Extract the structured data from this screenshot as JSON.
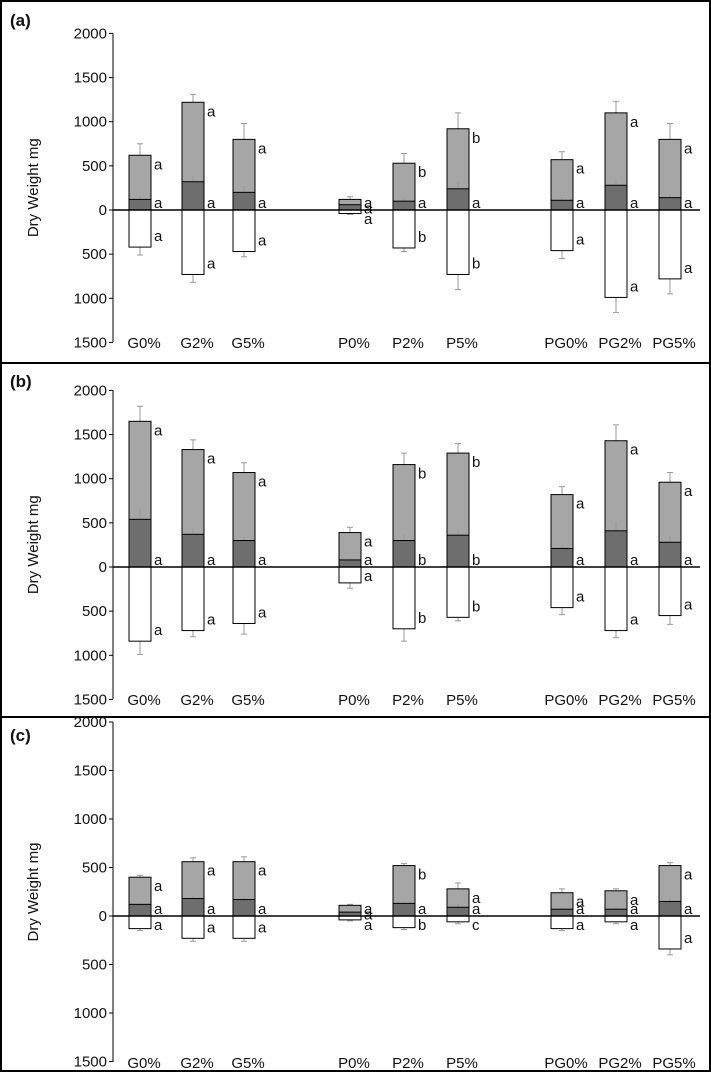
{
  "chart_data": [
    {
      "type": "bar",
      "panel_label": "(a)",
      "ylabel": "Dry Weight mg",
      "y_tick_labels_above": [
        "2000",
        "1500",
        "1000",
        "500",
        "0"
      ],
      "y_tick_labels_below": [
        "500",
        "1000",
        "1500"
      ],
      "ylim_above": [
        0,
        2000
      ],
      "ylim_below": [
        0,
        1500
      ],
      "colors": {
        "upper_total": "#a6a6a6",
        "upper_inner": "#6e6e6e",
        "below": "#ffffff",
        "error_bar": "#999999"
      },
      "categories": [
        "G0%",
        "G2%",
        "G5%",
        "P0%",
        "P2%",
        "P5%",
        "PG0%",
        "PG2%",
        "PG5%"
      ],
      "series": [
        {
          "name": "",
          "values": [
            620,
            1220,
            800,
            120,
            530,
            920,
            570,
            1100,
            800
          ],
          "error": [
            130,
            90,
            180,
            30,
            110,
            180,
            90,
            130,
            180
          ],
          "letters": [
            "a",
            "a",
            "a",
            "a",
            "b",
            "b",
            "a",
            "a",
            "a"
          ]
        },
        {
          "name": "",
          "values": [
            120,
            320,
            200,
            60,
            100,
            240,
            110,
            280,
            140
          ],
          "error": [
            30,
            70,
            70,
            10,
            30,
            80,
            25,
            80,
            40
          ],
          "letters": [
            "a",
            "a",
            "a",
            "a",
            "a",
            "a",
            "a",
            "a",
            "a"
          ]
        },
        {
          "name": "",
          "values": [
            420,
            730,
            470,
            40,
            430,
            730,
            460,
            990,
            780
          ],
          "error": [
            90,
            90,
            60,
            10,
            40,
            170,
            90,
            170,
            170
          ],
          "letters": [
            "a",
            "a",
            "a",
            "a",
            "b",
            "b",
            "a",
            "a",
            "a"
          ]
        }
      ]
    },
    {
      "type": "bar",
      "panel_label": "(b)",
      "ylabel": "Dry Weight mg",
      "y_tick_labels_above": [
        "2000",
        "1500",
        "1000",
        "500",
        "0"
      ],
      "y_tick_labels_below": [
        "500",
        "1000",
        "1500"
      ],
      "ylim_above": [
        0,
        2000
      ],
      "ylim_below": [
        0,
        1500
      ],
      "colors": {
        "upper_total": "#a6a6a6",
        "upper_inner": "#6e6e6e",
        "below": "#ffffff",
        "error_bar": "#999999"
      },
      "categories": [
        "G0%",
        "G2%",
        "G5%",
        "P0%",
        "P2%",
        "P5%",
        "PG0%",
        "PG2%",
        "PG5%"
      ],
      "series": [
        {
          "name": "",
          "values": [
            1650,
            1330,
            1070,
            390,
            1160,
            1290,
            820,
            1430,
            960
          ],
          "error": [
            170,
            110,
            110,
            60,
            130,
            110,
            90,
            180,
            110
          ],
          "letters": [
            "a",
            "a",
            "a",
            "a",
            "b",
            "b",
            "a",
            "a",
            "a"
          ]
        },
        {
          "name": "",
          "values": [
            540,
            370,
            300,
            80,
            300,
            360,
            210,
            410,
            280
          ],
          "error": [
            120,
            60,
            40,
            20,
            60,
            50,
            40,
            90,
            70
          ],
          "letters": [
            "a",
            "a",
            "a",
            "a",
            "b",
            "b",
            "a",
            "a",
            "a"
          ]
        },
        {
          "name": "",
          "values": [
            840,
            720,
            640,
            180,
            700,
            570,
            460,
            720,
            550
          ],
          "error": [
            150,
            70,
            120,
            60,
            140,
            40,
            80,
            80,
            100
          ],
          "letters": [
            "a",
            "a",
            "a",
            "a",
            "b",
            "b",
            "a",
            "a",
            "a"
          ]
        }
      ]
    },
    {
      "type": "bar",
      "panel_label": "(c)",
      "ylabel": "Dry Weight mg",
      "y_tick_labels_above": [
        "2000",
        "1500",
        "1000",
        "500",
        "0"
      ],
      "y_tick_labels_below": [
        "500",
        "1000",
        "1500"
      ],
      "ylim_above": [
        0,
        2000
      ],
      "ylim_below": [
        0,
        1500
      ],
      "colors": {
        "upper_total": "#a6a6a6",
        "upper_inner": "#6e6e6e",
        "below": "#ffffff",
        "error_bar": "#999999"
      },
      "categories": [
        "G0%",
        "G2%",
        "G5%",
        "P0%",
        "P2%",
        "P5%",
        "PG0%",
        "PG2%",
        "PG5%"
      ],
      "series": [
        {
          "name": "",
          "values": [
            400,
            560,
            560,
            110,
            520,
            280,
            240,
            260,
            520
          ],
          "error": [
            20,
            40,
            50,
            10,
            20,
            60,
            40,
            20,
            30
          ],
          "letters": [
            "a",
            "a",
            "a",
            "a",
            "b",
            "a",
            "a",
            "a",
            "a"
          ]
        },
        {
          "name": "",
          "values": [
            120,
            180,
            170,
            40,
            130,
            90,
            70,
            70,
            150
          ],
          "error": [
            20,
            30,
            30,
            10,
            20,
            30,
            20,
            20,
            30
          ],
          "letters": [
            "a",
            "a",
            "a",
            "a",
            "a",
            "a",
            "a",
            "a",
            "a"
          ]
        },
        {
          "name": "",
          "values": [
            130,
            230,
            230,
            40,
            120,
            60,
            130,
            60,
            340
          ],
          "error": [
            20,
            30,
            30,
            10,
            20,
            20,
            20,
            20,
            60
          ],
          "letters": [
            "a",
            "a",
            "a",
            "a",
            "b",
            "c",
            "a",
            "a",
            "a"
          ]
        }
      ]
    }
  ]
}
